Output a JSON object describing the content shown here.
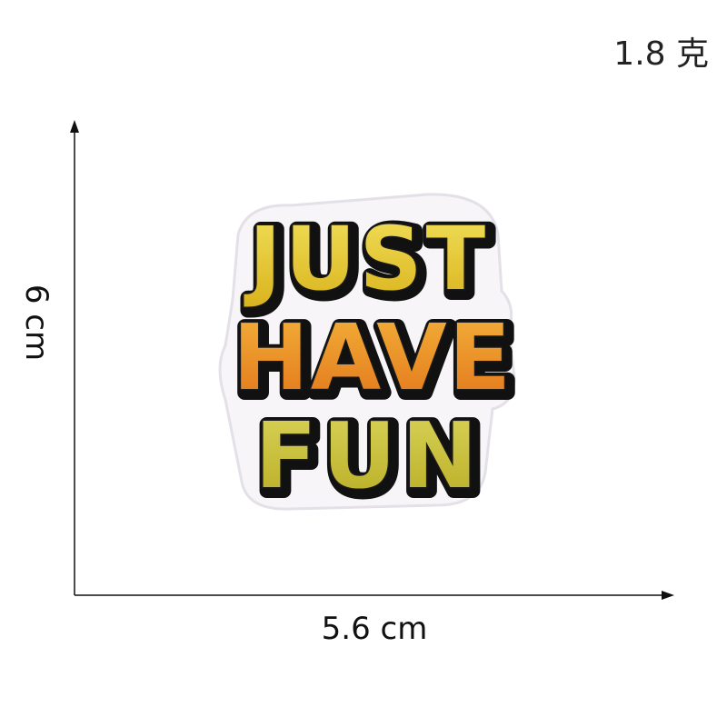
{
  "weight_label": "1.8 克",
  "height_label": "6 cm",
  "width_label": "5.6 cm",
  "patch": {
    "lines": [
      "JUST",
      "HAVE",
      "FUN"
    ],
    "colors": {
      "outline": "#111111",
      "border": "#eeeaf0",
      "yellow": "#e6d23a",
      "orange": "#e98a1f",
      "olive": "#c9c43c"
    }
  }
}
